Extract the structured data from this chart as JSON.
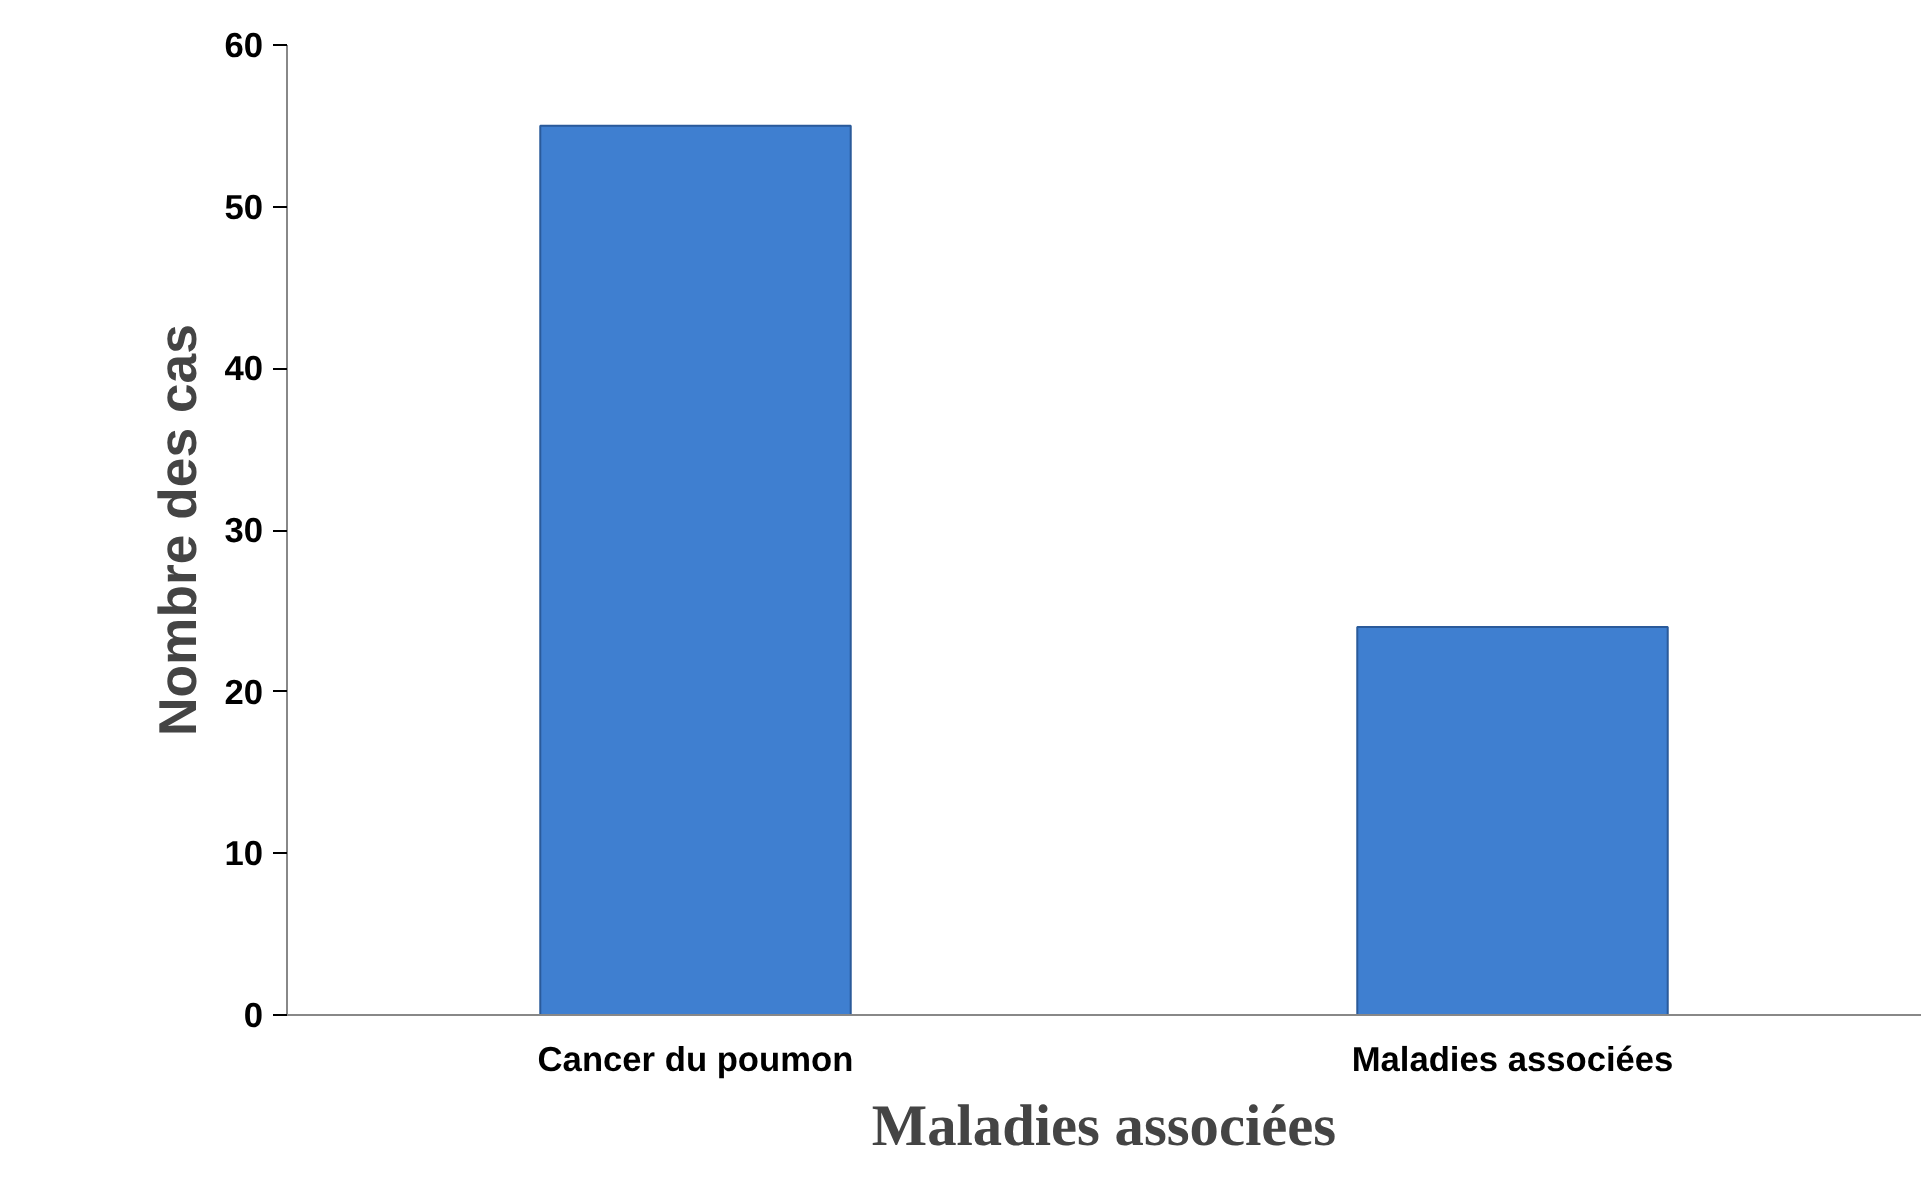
{
  "chart_data": {
    "type": "bar",
    "xlabel": "Maladies associées",
    "ylabel": "Nombre des cas",
    "categories": [
      "Cancer du poumon",
      "Maladies associées"
    ],
    "values": [
      55,
      24
    ],
    "color": "#3f7fd0",
    "ylim": [
      0,
      60
    ],
    "yticks": [
      0,
      10,
      20,
      30,
      40,
      50,
      60
    ],
    "grid": false
  }
}
